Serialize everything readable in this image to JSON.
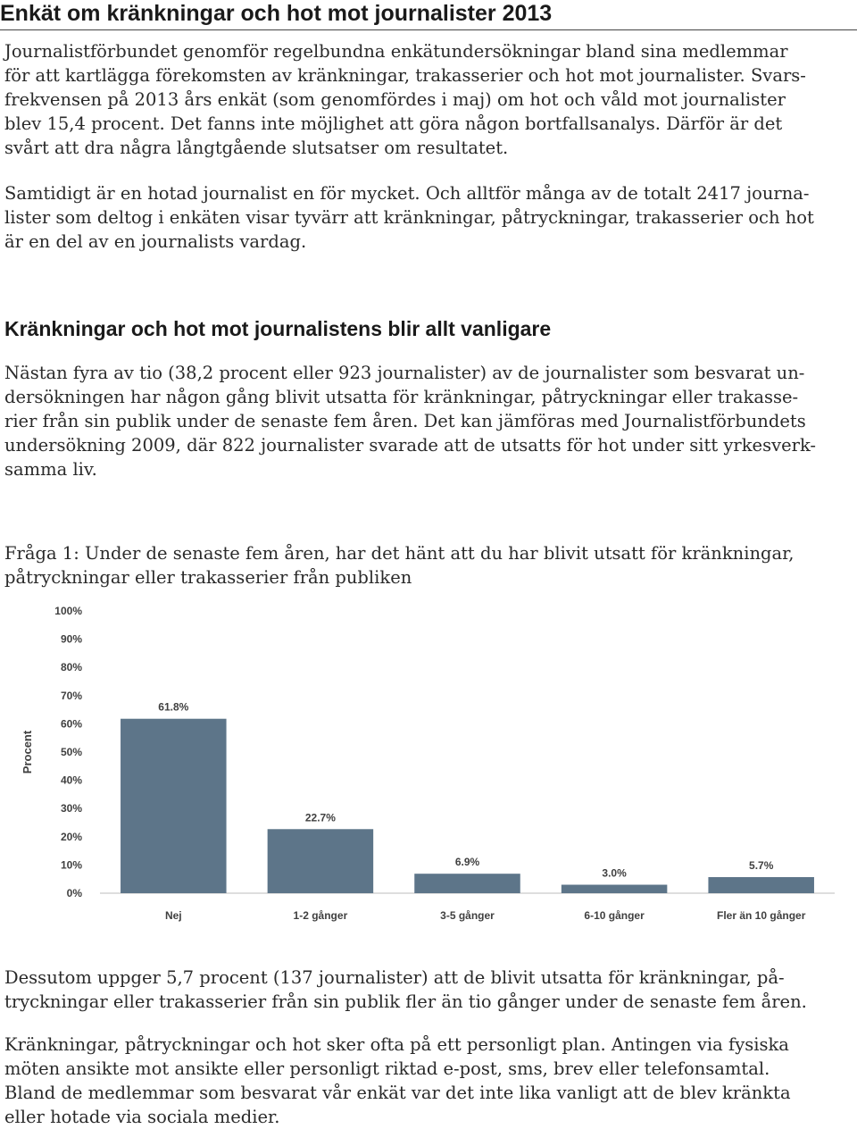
{
  "article": {
    "title": "Enkät om kränkningar och hot mot journalister 2013",
    "intro_lines": [
      "Journalistförbundet genomför regelbundna enkätundersökningar bland sina medlemmar",
      "för att kartlägga förekomsten av kränkningar, trakasserier och hot mot journalister. Svars-",
      "frekvensen på 2013 års enkät (som genomfördes i maj) om hot och våld mot journalister",
      "blev 15,4 procent. Det fanns inte möjlighet att göra någon bortfallsanalys. Därför är det",
      "svårt att dra några långtgående slutsatser om resultatet."
    ],
    "para2_lines": [
      "Samtidigt är en hotad journalist en för mycket. Och alltför många av de totalt 2417 journa-",
      "lister som deltog i enkäten visar tyvärr att kränkningar, påtryckningar, trakasserier och hot",
      "är en del av en journalists vardag."
    ],
    "section_heading": "Kränkningar och hot mot journalistens blir allt vanligare",
    "section_lines": [
      "Nästan fyra av tio (38,2 procent eller 923 journalister) av de journalister som besvarat un-",
      "dersökningen har någon gång blivit utsatta för kränkningar, påtryckningar eller trakasse-",
      "rier från sin publik under de senaste fem åren. Det kan jämföras med Journalistförbundets",
      "undersökning 2009, där 822 journalister svarade att de utsatts för hot under sitt yrkesverk-",
      "samma liv."
    ],
    "question_lines": [
      "Fråga 1: Under de senaste fem åren, har det hänt att du har blivit utsatt för kränkningar,",
      "påtryckningar eller trakasserier från publiken"
    ],
    "after_chart_lines": [
      "Dessutom uppger 5,7 procent (137 journalister) att de blivit utsatta för kränkningar, på-",
      "tryckningar eller trakasserier från sin publik fler än tio gånger under de senaste fem åren."
    ],
    "final_lines": [
      "Kränkningar, påtryckningar och hot sker ofta på ett personligt plan. Antingen via fysiska",
      "möten ansikte mot ansikte eller personligt riktad e-post, sms, brev eller telefonsamtal.",
      "Bland de medlemmar som besvarat vår enkät var det inte lika vanligt att de blev kränkta",
      "eller hotade via sociala medier."
    ]
  },
  "chart_data": {
    "type": "bar",
    "title": "",
    "xlabel": "",
    "ylabel": "Procent",
    "categories": [
      "Nej",
      "1-2 gånger",
      "3-5 gånger",
      "6-10 gånger",
      "Fler än 10 gånger"
    ],
    "values": [
      61.8,
      22.7,
      6.9,
      3.0,
      5.7
    ],
    "value_labels": [
      "61.8%",
      "22.7%",
      "6.9%",
      "3.0%",
      "5.7%"
    ],
    "ylim": [
      0,
      100
    ],
    "yticks": [
      0,
      10,
      20,
      30,
      40,
      50,
      60,
      70,
      80,
      90,
      100
    ],
    "ytick_labels": [
      "0%",
      "10%",
      "20%",
      "30%",
      "40%",
      "50%",
      "60%",
      "70%",
      "80%",
      "90%",
      "100%"
    ],
    "grid": false,
    "legend": "none",
    "bar_color": "#5d7589"
  }
}
